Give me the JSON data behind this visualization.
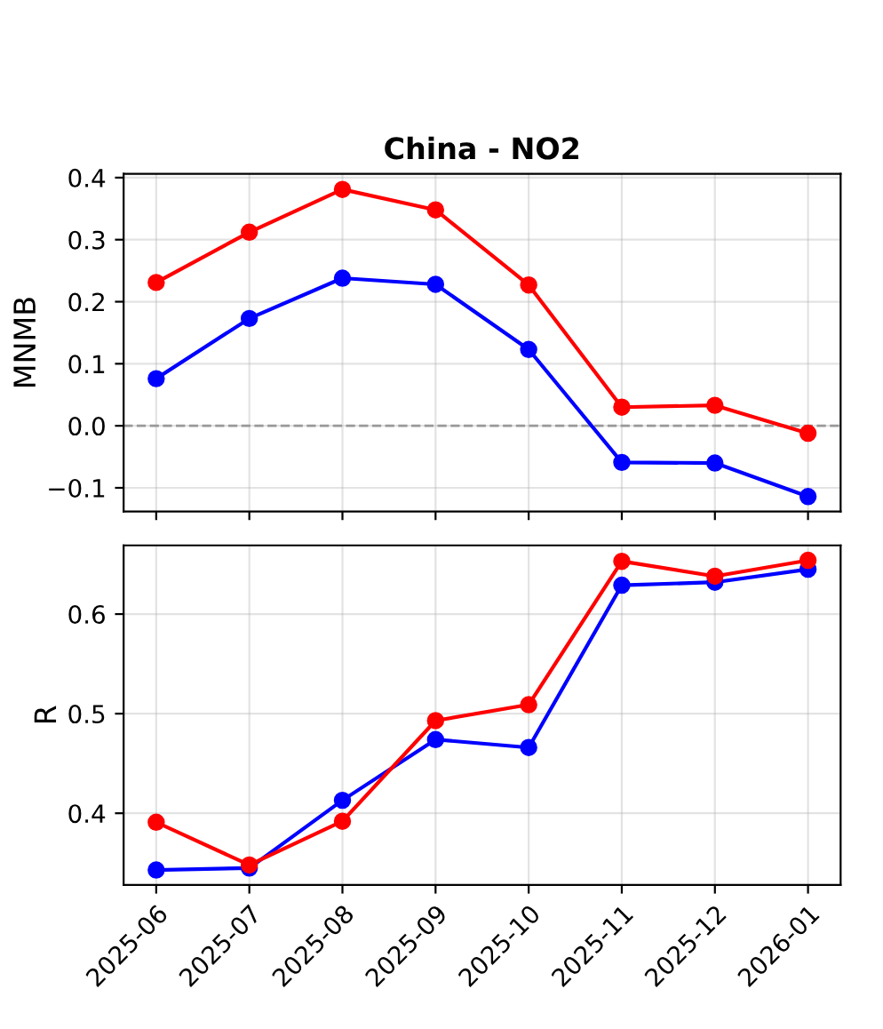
{
  "chart_data": [
    {
      "type": "line",
      "title": "China - NO2",
      "ylabel": "MNMB",
      "categories": [
        "2025-06",
        "2025-07",
        "2025-08",
        "2025-09",
        "2025-10",
        "2025-11",
        "2025-12",
        "2026-01"
      ],
      "series": [
        {
          "color": "#ff0000",
          "values": [
            0.231,
            0.312,
            0.381,
            0.348,
            0.227,
            0.03,
            0.033,
            -0.012
          ]
        },
        {
          "color": "#0000ff",
          "values": [
            0.076,
            0.173,
            0.238,
            0.228,
            0.123,
            -0.059,
            -0.06,
            -0.114
          ]
        }
      ],
      "ylim": [
        -0.138,
        0.406
      ],
      "yticks": [
        {
          "value": -0.1,
          "label": "−0.1"
        },
        {
          "value": 0,
          "label": "0.0"
        },
        0.1,
        0.2,
        0.3,
        0.4
      ],
      "ref_lines": [
        {
          "axis": "y",
          "value": 0,
          "color": "#999999",
          "line_style": "dashed"
        }
      ],
      "grid": true,
      "marker": "circle",
      "line_style": "solid",
      "tick_labels": "y"
    },
    {
      "type": "line",
      "ylabel": "R",
      "categories": [
        "2025-06",
        "2025-07",
        "2025-08",
        "2025-09",
        "2025-10",
        "2025-11",
        "2025-12",
        "2026-01"
      ],
      "series": [
        {
          "color": "#ff0000",
          "values": [
            0.391,
            0.348,
            0.392,
            0.493,
            0.509,
            0.653,
            0.638,
            0.654
          ]
        },
        {
          "color": "#0000ff",
          "values": [
            0.343,
            0.345,
            0.413,
            0.474,
            0.466,
            0.629,
            0.632,
            0.645
          ]
        }
      ],
      "ylim": [
        0.328,
        0.669
      ],
      "yticks": [
        0.4,
        0.5,
        0.6
      ],
      "grid": true,
      "marker": "circle",
      "line_style": "solid"
    }
  ]
}
